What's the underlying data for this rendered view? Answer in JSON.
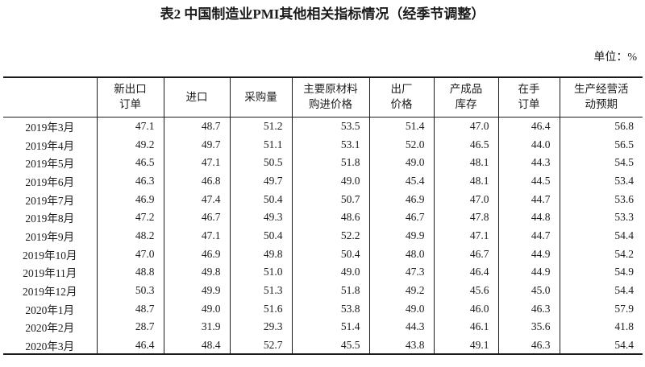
{
  "title": "表2 中国制造业PMI其他相关指标情况（经季节调整）",
  "unit_label": "单位：%",
  "table": {
    "columns": [
      {
        "label": ""
      },
      {
        "label": "新出口\n订单"
      },
      {
        "label": "进口"
      },
      {
        "label": "采购量"
      },
      {
        "label": "主要原材料\n购进价格"
      },
      {
        "label": "出厂\n价格"
      },
      {
        "label": "产成品\n库存"
      },
      {
        "label": "在手\n订单"
      },
      {
        "label": "生产经营活\n动预期"
      }
    ],
    "rows": [
      {
        "month": "2019年3月",
        "values": [
          "47.1",
          "48.7",
          "51.2",
          "53.5",
          "51.4",
          "47.0",
          "46.4",
          "56.8"
        ]
      },
      {
        "month": "2019年4月",
        "values": [
          "49.2",
          "49.7",
          "51.1",
          "53.1",
          "52.0",
          "46.5",
          "44.0",
          "56.5"
        ]
      },
      {
        "month": "2019年5月",
        "values": [
          "46.5",
          "47.1",
          "50.5",
          "51.8",
          "49.0",
          "48.1",
          "44.3",
          "54.5"
        ]
      },
      {
        "month": "2019年6月",
        "values": [
          "46.3",
          "46.8",
          "49.7",
          "49.0",
          "45.4",
          "48.1",
          "44.5",
          "53.4"
        ]
      },
      {
        "month": "2019年7月",
        "values": [
          "46.9",
          "47.4",
          "50.4",
          "50.7",
          "46.9",
          "47.0",
          "44.7",
          "53.6"
        ]
      },
      {
        "month": "2019年8月",
        "values": [
          "47.2",
          "46.7",
          "49.3",
          "48.6",
          "46.7",
          "47.8",
          "44.8",
          "53.3"
        ]
      },
      {
        "month": "2019年9月",
        "values": [
          "48.2",
          "47.1",
          "50.4",
          "52.2",
          "49.9",
          "47.1",
          "44.7",
          "54.4"
        ]
      },
      {
        "month": "2019年10月",
        "values": [
          "47.0",
          "46.9",
          "49.8",
          "50.4",
          "48.0",
          "46.7",
          "44.9",
          "54.2"
        ]
      },
      {
        "month": "2019年11月",
        "values": [
          "48.8",
          "49.8",
          "51.0",
          "49.0",
          "47.3",
          "46.4",
          "44.9",
          "54.9"
        ]
      },
      {
        "month": "2019年12月",
        "values": [
          "50.3",
          "49.9",
          "51.3",
          "51.8",
          "49.2",
          "45.6",
          "45.0",
          "54.4"
        ]
      },
      {
        "month": "2020年1月",
        "values": [
          "48.7",
          "49.0",
          "51.6",
          "53.8",
          "49.0",
          "46.0",
          "46.3",
          "57.9"
        ]
      },
      {
        "month": "2020年2月",
        "values": [
          "28.7",
          "31.9",
          "29.3",
          "51.4",
          "44.3",
          "46.1",
          "35.6",
          "41.8"
        ]
      },
      {
        "month": "2020年3月",
        "values": [
          "46.4",
          "48.4",
          "52.7",
          "45.5",
          "43.8",
          "49.1",
          "46.3",
          "54.4"
        ]
      }
    ]
  }
}
